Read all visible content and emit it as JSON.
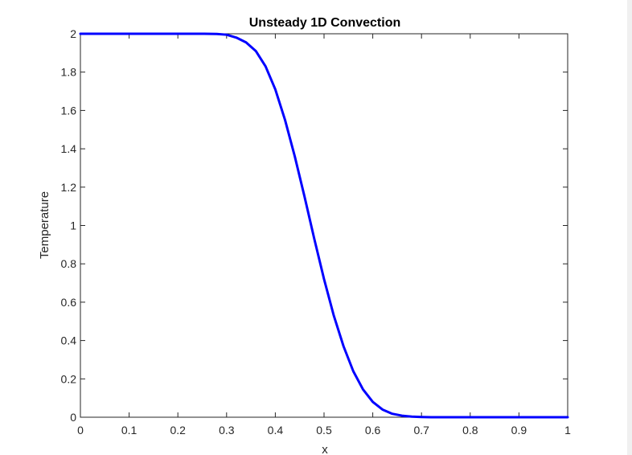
{
  "colors": {
    "background": "#ffffff",
    "axes": "#262626",
    "line": "#0000ff",
    "right_strip": "#f0f0f0"
  },
  "chart_data": {
    "type": "line",
    "title": "Unsteady 1D Convection",
    "xlabel": "x",
    "ylabel": "Temperature",
    "xlim": [
      0,
      1
    ],
    "ylim": [
      0,
      2
    ],
    "xticks": [
      "0",
      "0.1",
      "0.2",
      "0.3",
      "0.4",
      "0.5",
      "0.6",
      "0.7",
      "0.8",
      "0.9",
      "1"
    ],
    "yticks": [
      "0",
      "0.2",
      "0.4",
      "0.6",
      "0.8",
      "1",
      "1.2",
      "1.4",
      "1.6",
      "1.8",
      "2"
    ],
    "grid": false,
    "box": true,
    "series": [
      {
        "color": "#0000ff",
        "x": [
          0,
          0.05,
          0.1,
          0.15,
          0.2,
          0.25,
          0.28,
          0.3,
          0.32,
          0.34,
          0.36,
          0.38,
          0.4,
          0.42,
          0.44,
          0.46,
          0.48,
          0.5,
          0.52,
          0.54,
          0.56,
          0.58,
          0.6,
          0.62,
          0.64,
          0.66,
          0.68,
          0.7,
          0.72,
          0.75,
          0.8,
          0.85,
          0.9,
          0.95,
          1.0
        ],
        "y": [
          2.0,
          2.0,
          2.0,
          2.0,
          2.0,
          2.0,
          1.999,
          1.995,
          1.98,
          1.955,
          1.91,
          1.83,
          1.71,
          1.55,
          1.36,
          1.15,
          0.93,
          0.72,
          0.53,
          0.37,
          0.24,
          0.145,
          0.08,
          0.04,
          0.018,
          0.008,
          0.003,
          0.001,
          0.0,
          0.0,
          0.0,
          0.0,
          0.0,
          0.0,
          0.0
        ]
      }
    ]
  }
}
